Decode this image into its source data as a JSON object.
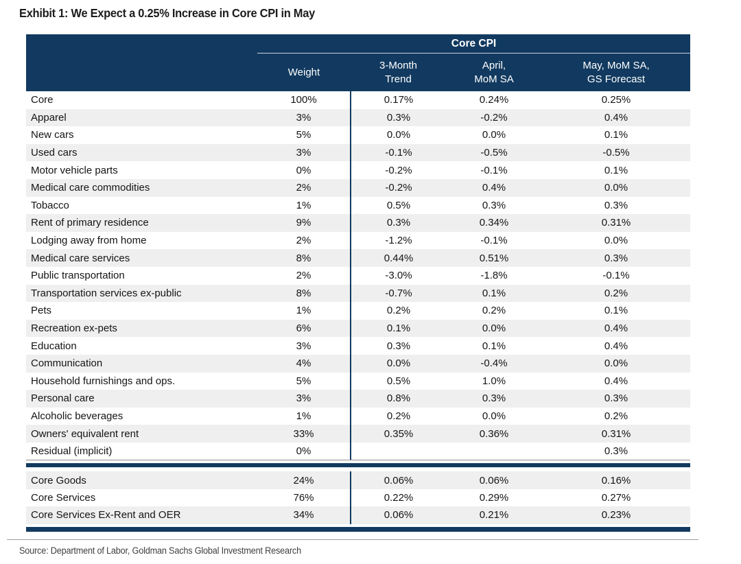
{
  "page": {
    "title": "Exhibit 1: We Expect a 0.25% Increase in Core CPI in May",
    "source": "Source: Department of Labor, Goldman Sachs Global Investment Research"
  },
  "colors": {
    "header_navy": "#123a60",
    "stripe_gray": "#efefef",
    "header_underline": "#c7d0da",
    "rule_gray": "#9e9e9e"
  },
  "table": {
    "group_header": "Core CPI",
    "columns": {
      "weight": "Weight",
      "trend": "3-Month\nTrend",
      "april": "April,\nMoM SA",
      "may": "May, MoM SA,\nGS Forecast"
    },
    "rows": [
      {
        "label": "Core",
        "weight": "100%",
        "trend": "0.17%",
        "april": "0.24%",
        "may": "0.25%"
      },
      {
        "label": "Apparel",
        "weight": "3%",
        "trend": "0.3%",
        "april": "-0.2%",
        "may": "0.4%"
      },
      {
        "label": "New cars",
        "weight": "5%",
        "trend": "0.0%",
        "april": "0.0%",
        "may": "0.1%"
      },
      {
        "label": "Used cars",
        "weight": "3%",
        "trend": "-0.1%",
        "april": "-0.5%",
        "may": "-0.5%"
      },
      {
        "label": "Motor vehicle parts",
        "weight": "0%",
        "trend": "-0.2%",
        "april": "-0.1%",
        "may": "0.1%"
      },
      {
        "label": "Medical care commodities",
        "weight": "2%",
        "trend": "-0.2%",
        "april": "0.4%",
        "may": "0.0%"
      },
      {
        "label": "Tobacco",
        "weight": "1%",
        "trend": "0.5%",
        "april": "0.3%",
        "may": "0.3%"
      },
      {
        "label": "Rent of primary residence",
        "weight": "9%",
        "trend": "0.3%",
        "april": "0.34%",
        "may": "0.31%"
      },
      {
        "label": "Lodging away from home",
        "weight": "2%",
        "trend": "-1.2%",
        "april": "-0.1%",
        "may": "0.0%"
      },
      {
        "label": "Medical care services",
        "weight": "8%",
        "trend": "0.44%",
        "april": "0.51%",
        "may": "0.3%"
      },
      {
        "label": "Public transportation",
        "weight": "2%",
        "trend": "-3.0%",
        "april": "-1.8%",
        "may": "-0.1%"
      },
      {
        "label": "Transportation services ex-public",
        "weight": "8%",
        "trend": "-0.7%",
        "april": "0.1%",
        "may": "0.2%"
      },
      {
        "label": "Pets",
        "weight": "1%",
        "trend": "0.2%",
        "april": "0.2%",
        "may": "0.1%"
      },
      {
        "label": "Recreation ex-pets",
        "weight": "6%",
        "trend": "0.1%",
        "april": "0.0%",
        "may": "0.4%"
      },
      {
        "label": "Education",
        "weight": "3%",
        "trend": "0.3%",
        "april": "0.1%",
        "may": "0.4%"
      },
      {
        "label": "Communication",
        "weight": "4%",
        "trend": "0.0%",
        "april": "-0.4%",
        "may": "0.0%"
      },
      {
        "label": "Household furnishings and ops.",
        "weight": "5%",
        "trend": "0.5%",
        "april": "1.0%",
        "may": "0.4%"
      },
      {
        "label": "Personal care",
        "weight": "3%",
        "trend": "0.8%",
        "april": "0.3%",
        "may": "0.3%"
      },
      {
        "label": "Alcoholic beverages",
        "weight": "1%",
        "trend": "0.2%",
        "april": "0.0%",
        "may": "0.2%"
      },
      {
        "label": "Owners' equivalent rent",
        "weight": "33%",
        "trend": "0.35%",
        "april": "0.36%",
        "may": "0.31%"
      },
      {
        "label": "Residual (implicit)",
        "weight": "0%",
        "trend": "",
        "april": "",
        "may": "0.3%"
      }
    ],
    "summary_rows": [
      {
        "label": "Core Goods",
        "weight": "24%",
        "trend": "0.06%",
        "april": "0.06%",
        "may": "0.16%"
      },
      {
        "label": "Core Services",
        "weight": "76%",
        "trend": "0.22%",
        "april": "0.29%",
        "may": "0.27%"
      },
      {
        "label": "Core Services Ex-Rent and OER",
        "weight": "34%",
        "trend": "0.06%",
        "april": "0.21%",
        "may": "0.23%"
      }
    ]
  }
}
